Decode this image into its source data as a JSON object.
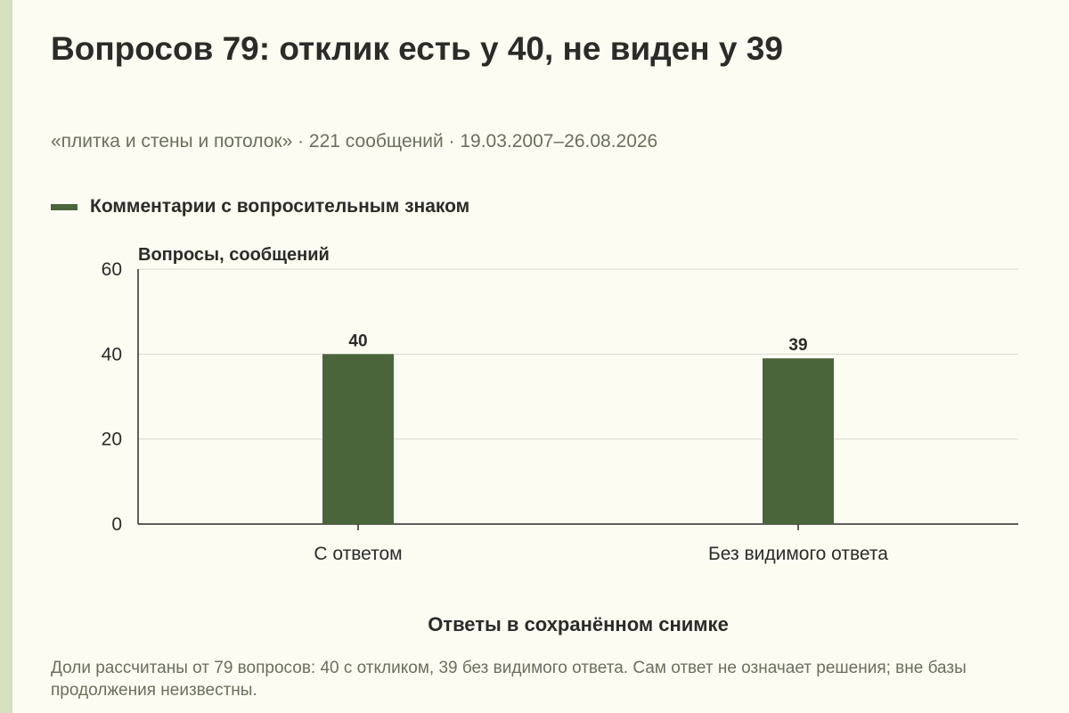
{
  "page": {
    "title": "Вопросов 79: отклик есть у 40, не виден у 39",
    "subtitle": "«плитка и стены и потолок» · 221 сообщений · 19.03.2007–26.08.2026",
    "footnote": "Доли рассчитаны от 79 вопросов: 40 с откликом, 39 без видимого ответа. Сам ответ не означает решения; вне базы продолжения неизвестны."
  },
  "colors": {
    "background": "#fdfcf3",
    "accent_strip": "#d5e1bf",
    "bar": "#4a653a",
    "grid": "#d9d9d0",
    "axis": "#2b2b28",
    "muted_text": "#6b6f5d"
  },
  "chart_data": {
    "type": "bar",
    "categories": [
      "С ответом",
      "Без видимого ответа"
    ],
    "series": [
      {
        "name": "Комментарии с вопросительным знаком",
        "values": [
          40,
          39
        ]
      }
    ],
    "data_labels": [
      "40",
      "39"
    ],
    "xlabel": "Ответы в сохранённом снимке",
    "ylabel": "Вопросы, сообщений",
    "ylim": [
      0,
      60
    ],
    "yticks": [
      0,
      20,
      40,
      60
    ],
    "grid": true,
    "legend_position": "top-left"
  }
}
